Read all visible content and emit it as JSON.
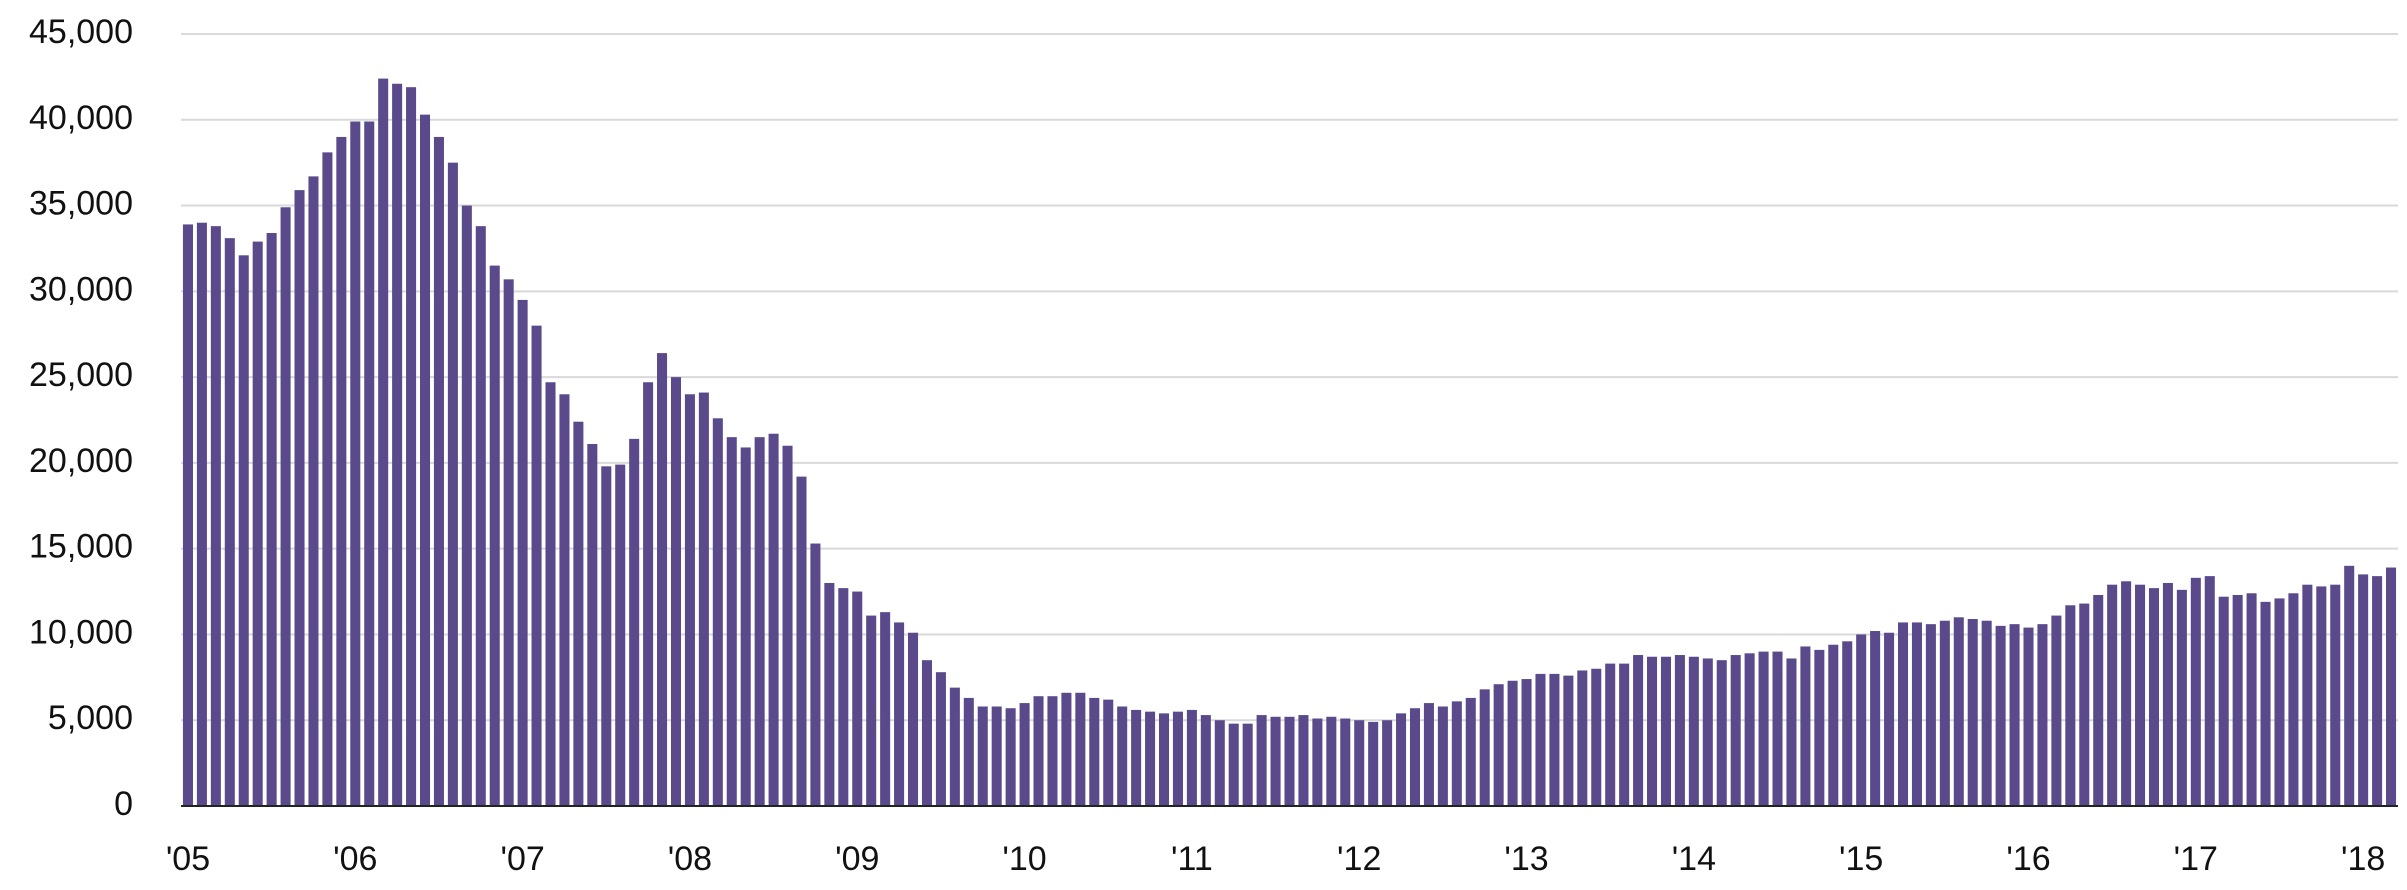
{
  "chart_data": {
    "type": "bar",
    "categories": [
      "'05",
      null,
      null,
      null,
      null,
      null,
      null,
      null,
      null,
      null,
      null,
      null,
      "'06",
      null,
      null,
      null,
      null,
      null,
      null,
      null,
      null,
      null,
      null,
      null,
      "'07",
      null,
      null,
      null,
      null,
      null,
      null,
      null,
      null,
      null,
      null,
      null,
      "'08",
      null,
      null,
      null,
      null,
      null,
      null,
      null,
      null,
      null,
      null,
      null,
      "'09",
      null,
      null,
      null,
      null,
      null,
      null,
      null,
      null,
      null,
      null,
      null,
      "'10",
      null,
      null,
      null,
      null,
      null,
      null,
      null,
      null,
      null,
      null,
      null,
      "'11",
      null,
      null,
      null,
      null,
      null,
      null,
      null,
      null,
      null,
      null,
      null,
      "'12",
      null,
      null,
      null,
      null,
      null,
      null,
      null,
      null,
      null,
      null,
      null,
      "'13",
      null,
      null,
      null,
      null,
      null,
      null,
      null,
      null,
      null,
      null,
      null,
      "'14",
      null,
      null,
      null,
      null,
      null,
      null,
      null,
      null,
      null,
      null,
      null,
      "'15",
      null,
      null,
      null,
      null,
      null,
      null,
      null,
      null,
      null,
      null,
      null,
      "'16",
      null,
      null,
      null,
      null,
      null,
      null,
      null,
      null,
      null,
      null,
      null,
      "'17",
      null,
      null,
      null,
      null,
      null,
      null,
      null,
      null,
      null,
      null,
      null,
      "'18",
      null,
      null
    ],
    "values": [
      33900,
      34000,
      33800,
      33100,
      32100,
      32900,
      33400,
      34900,
      35900,
      36700,
      38100,
      39000,
      39900,
      39900,
      42400,
      42100,
      41900,
      40300,
      39000,
      37500,
      35000,
      33800,
      31500,
      30700,
      29500,
      28000,
      24700,
      24000,
      22400,
      21100,
      19800,
      19900,
      21400,
      24700,
      26400,
      25000,
      24000,
      24100,
      22600,
      21500,
      20900,
      21500,
      21700,
      21000,
      19200,
      15300,
      13000,
      12700,
      12500,
      11100,
      11300,
      10700,
      10100,
      8500,
      7800,
      6900,
      6300,
      5800,
      5800,
      5700,
      6000,
      6400,
      6400,
      6600,
      6600,
      6300,
      6200,
      5800,
      5600,
      5500,
      5400,
      5500,
      5600,
      5300,
      5000,
      4800,
      4800,
      5300,
      5200,
      5200,
      5300,
      5100,
      5200,
      5100,
      5000,
      4900,
      5000,
      5400,
      5700,
      6000,
      5800,
      6100,
      6300,
      6800,
      7100,
      7300,
      7400,
      7700,
      7700,
      7600,
      7900,
      8000,
      8300,
      8300,
      8800,
      8700,
      8700,
      8800,
      8700,
      8600,
      8500,
      8800,
      8900,
      9000,
      9000,
      8600,
      9300,
      9100,
      9400,
      9600,
      10000,
      10200,
      10100,
      10700,
      10700,
      10600,
      10800,
      11000,
      10900,
      10800,
      10500,
      10600,
      10400,
      10600,
      11100,
      11700,
      11800,
      12300,
      12900,
      13100,
      12900,
      12700,
      13000,
      12600,
      13300,
      13400,
      12200,
      12300,
      12400,
      11900,
      12100,
      12400,
      12900,
      12800,
      12900,
      14000,
      13500,
      13400,
      13900
    ],
    "color": "#5b4a8b",
    "ylim": [
      0,
      45000
    ],
    "yticks": [
      0,
      {
        "value": 5000,
        "label": "5,000"
      },
      {
        "value": 10000,
        "label": "10,000"
      },
      {
        "value": 15000,
        "label": "15,000"
      },
      {
        "value": 20000,
        "label": "20,000"
      },
      {
        "value": 25000,
        "label": "25,000"
      },
      {
        "value": 30000,
        "label": "30,000"
      },
      {
        "value": 35000,
        "label": "35,000"
      },
      {
        "value": 40000,
        "label": "40,000"
      },
      {
        "value": 45000,
        "label": "45,000"
      }
    ],
    "grid": true
  }
}
